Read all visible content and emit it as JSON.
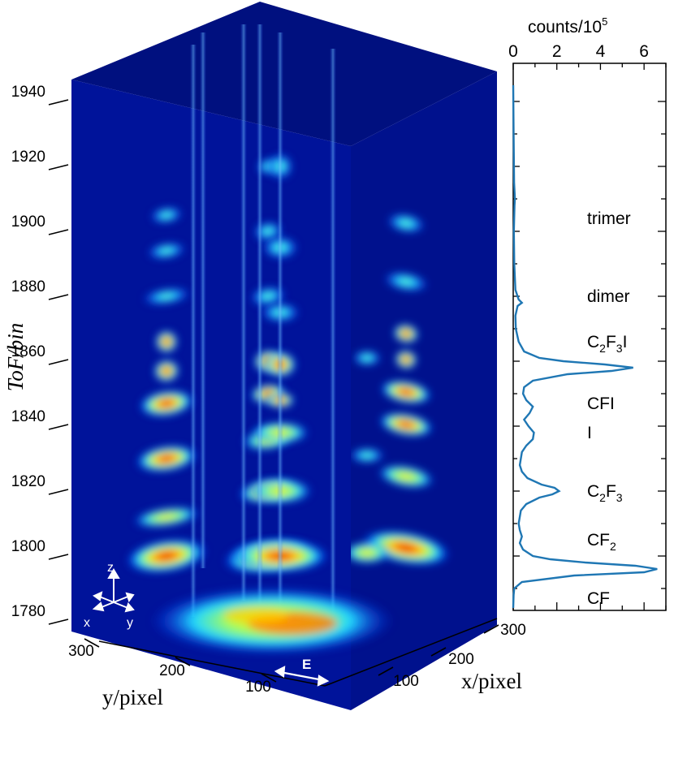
{
  "chart_data": [
    {
      "type": "volume",
      "zlabel": "ToF/bin",
      "xlabel": "x/pixel",
      "ylabel": "y/pixel",
      "zlim": [
        1780,
        1950
      ],
      "z_ticks": [
        "1780",
        "1800",
        "1820",
        "1840",
        "1860",
        "1880",
        "1900",
        "1920",
        "1940"
      ],
      "y_ticks": [
        "300",
        "200",
        "100"
      ],
      "x_ticks": [
        "100",
        "200",
        "300"
      ],
      "axis_glyph": {
        "z": "z",
        "x": "x",
        "y": "y"
      },
      "polarization_label": "E",
      "colormap": [
        "#00008f",
        "#0030ff",
        "#00c8ff",
        "#7fff7f",
        "#ffe000",
        "#ff4000",
        "#c80000"
      ]
    },
    {
      "type": "line",
      "xlabel": "counts/10",
      "xlabel_sup": "5",
      "xlim": [
        0,
        7
      ],
      "x_ticks": [
        "0",
        "2",
        "4",
        "6"
      ],
      "ylim": [
        1780,
        1945
      ],
      "color": "#1f77b4",
      "points": [
        [
          1784,
          0.0
        ],
        [
          1788,
          0.02
        ],
        [
          1790,
          0.05
        ],
        [
          1792,
          0.4
        ],
        [
          1794,
          2.8
        ],
        [
          1795,
          6.0
        ],
        [
          1796,
          6.6
        ],
        [
          1797,
          5.6
        ],
        [
          1798,
          3.3
        ],
        [
          1799,
          1.7
        ],
        [
          1800,
          0.9
        ],
        [
          1802,
          0.45
        ],
        [
          1804,
          0.3
        ],
        [
          1806,
          0.4
        ],
        [
          1808,
          0.3
        ],
        [
          1810,
          0.25
        ],
        [
          1814,
          0.35
        ],
        [
          1816,
          0.6
        ],
        [
          1818,
          1.2
        ],
        [
          1819,
          1.8
        ],
        [
          1820,
          2.1
        ],
        [
          1821,
          1.9
        ],
        [
          1822,
          1.3
        ],
        [
          1824,
          0.65
        ],
        [
          1826,
          0.4
        ],
        [
          1828,
          0.3
        ],
        [
          1830,
          0.35
        ],
        [
          1832,
          0.4
        ],
        [
          1834,
          0.6
        ],
        [
          1836,
          0.9
        ],
        [
          1838,
          0.95
        ],
        [
          1840,
          0.7
        ],
        [
          1842,
          0.5
        ],
        [
          1844,
          0.75
        ],
        [
          1846,
          0.9
        ],
        [
          1848,
          0.6
        ],
        [
          1850,
          0.45
        ],
        [
          1852,
          0.5
        ],
        [
          1854,
          0.9
        ],
        [
          1856,
          2.5
        ],
        [
          1857,
          4.5
        ],
        [
          1858,
          5.5
        ],
        [
          1859,
          4.2
        ],
        [
          1860,
          2.3
        ],
        [
          1861,
          1.2
        ],
        [
          1863,
          0.5
        ],
        [
          1866,
          0.25
        ],
        [
          1870,
          0.12
        ],
        [
          1874,
          0.1
        ],
        [
          1877,
          0.2
        ],
        [
          1878,
          0.4
        ],
        [
          1879,
          0.25
        ],
        [
          1882,
          0.1
        ],
        [
          1890,
          0.05
        ],
        [
          1900,
          0.03
        ],
        [
          1908,
          0.06
        ],
        [
          1910,
          0.08
        ],
        [
          1915,
          0.04
        ],
        [
          1930,
          0.02
        ],
        [
          1945,
          0.0
        ]
      ],
      "peak_labels": [
        {
          "y": 1904,
          "text": "trimer"
        },
        {
          "y": 1880,
          "text": "dimer"
        },
        {
          "y": 1866,
          "main": "C",
          "sub": "2",
          "main2": "F",
          "sub2": "3",
          "tail": "I"
        },
        {
          "y": 1847,
          "text": "CFI"
        },
        {
          "y": 1838,
          "text": "I"
        },
        {
          "y": 1820,
          "main": "C",
          "sub": "2",
          "main2": "F",
          "sub2": "3",
          "tail": ""
        },
        {
          "y": 1805,
          "main": "CF",
          "sub": "2",
          "main2": "",
          "sub2": "",
          "tail": ""
        },
        {
          "y": 1787,
          "text": "CF"
        }
      ]
    }
  ]
}
